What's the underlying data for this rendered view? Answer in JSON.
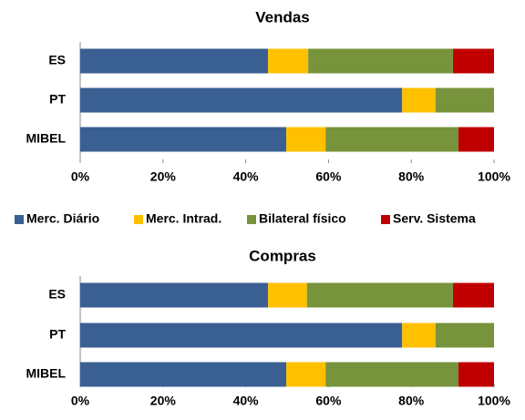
{
  "chart_data": [
    {
      "type": "stacked-bar-horizontal",
      "title": "Vendas",
      "categories": [
        "ES",
        "PT",
        "MIBEL"
      ],
      "series": [
        {
          "name": "Merc. Diário",
          "color": "#3a5f93",
          "values": [
            45.4,
            77.8,
            49.8
          ]
        },
        {
          "name": "Merc. Intrad.",
          "color": "#ffc000",
          "values": [
            9.7,
            8.1,
            9.5
          ]
        },
        {
          "name": "Bilateral físico",
          "color": "#77933c",
          "values": [
            35.0,
            14.1,
            32.1
          ]
        },
        {
          "name": "Serv. Sistema",
          "color": "#c00000",
          "values": [
            9.9,
            0,
            8.6
          ]
        }
      ],
      "xlim": [
        0,
        100
      ],
      "xticks": [
        {
          "value": 0,
          "label": "0%"
        },
        {
          "value": 20,
          "label": "20%"
        },
        {
          "value": 40,
          "label": "40%"
        },
        {
          "value": 60,
          "label": "60%"
        },
        {
          "value": 80,
          "label": "80%"
        },
        {
          "value": 100,
          "label": "100%"
        }
      ],
      "legend": "bottom"
    },
    {
      "type": "stacked-bar-horizontal",
      "title": "Compras",
      "categories": [
        "ES",
        "PT",
        "MIBEL"
      ],
      "series": [
        {
          "color": "#3a5f93",
          "values": [
            45.4,
            77.8,
            49.8
          ]
        },
        {
          "color": "#ffc000",
          "values": [
            9.4,
            8.1,
            9.5
          ]
        },
        {
          "color": "#77933c",
          "values": [
            35.3,
            14.1,
            32.1
          ]
        },
        {
          "color": "#c00000",
          "values": [
            9.9,
            0,
            8.6
          ]
        }
      ],
      "xlim": [
        0,
        100
      ],
      "xticks": [
        {
          "value": 0,
          "label": "0%"
        },
        {
          "value": 20,
          "label": "20%"
        },
        {
          "value": 40,
          "label": "40%"
        },
        {
          "value": 60,
          "label": "60%"
        },
        {
          "value": 80,
          "label": "80%"
        },
        {
          "value": 100,
          "label": "100%"
        }
      ]
    }
  ]
}
